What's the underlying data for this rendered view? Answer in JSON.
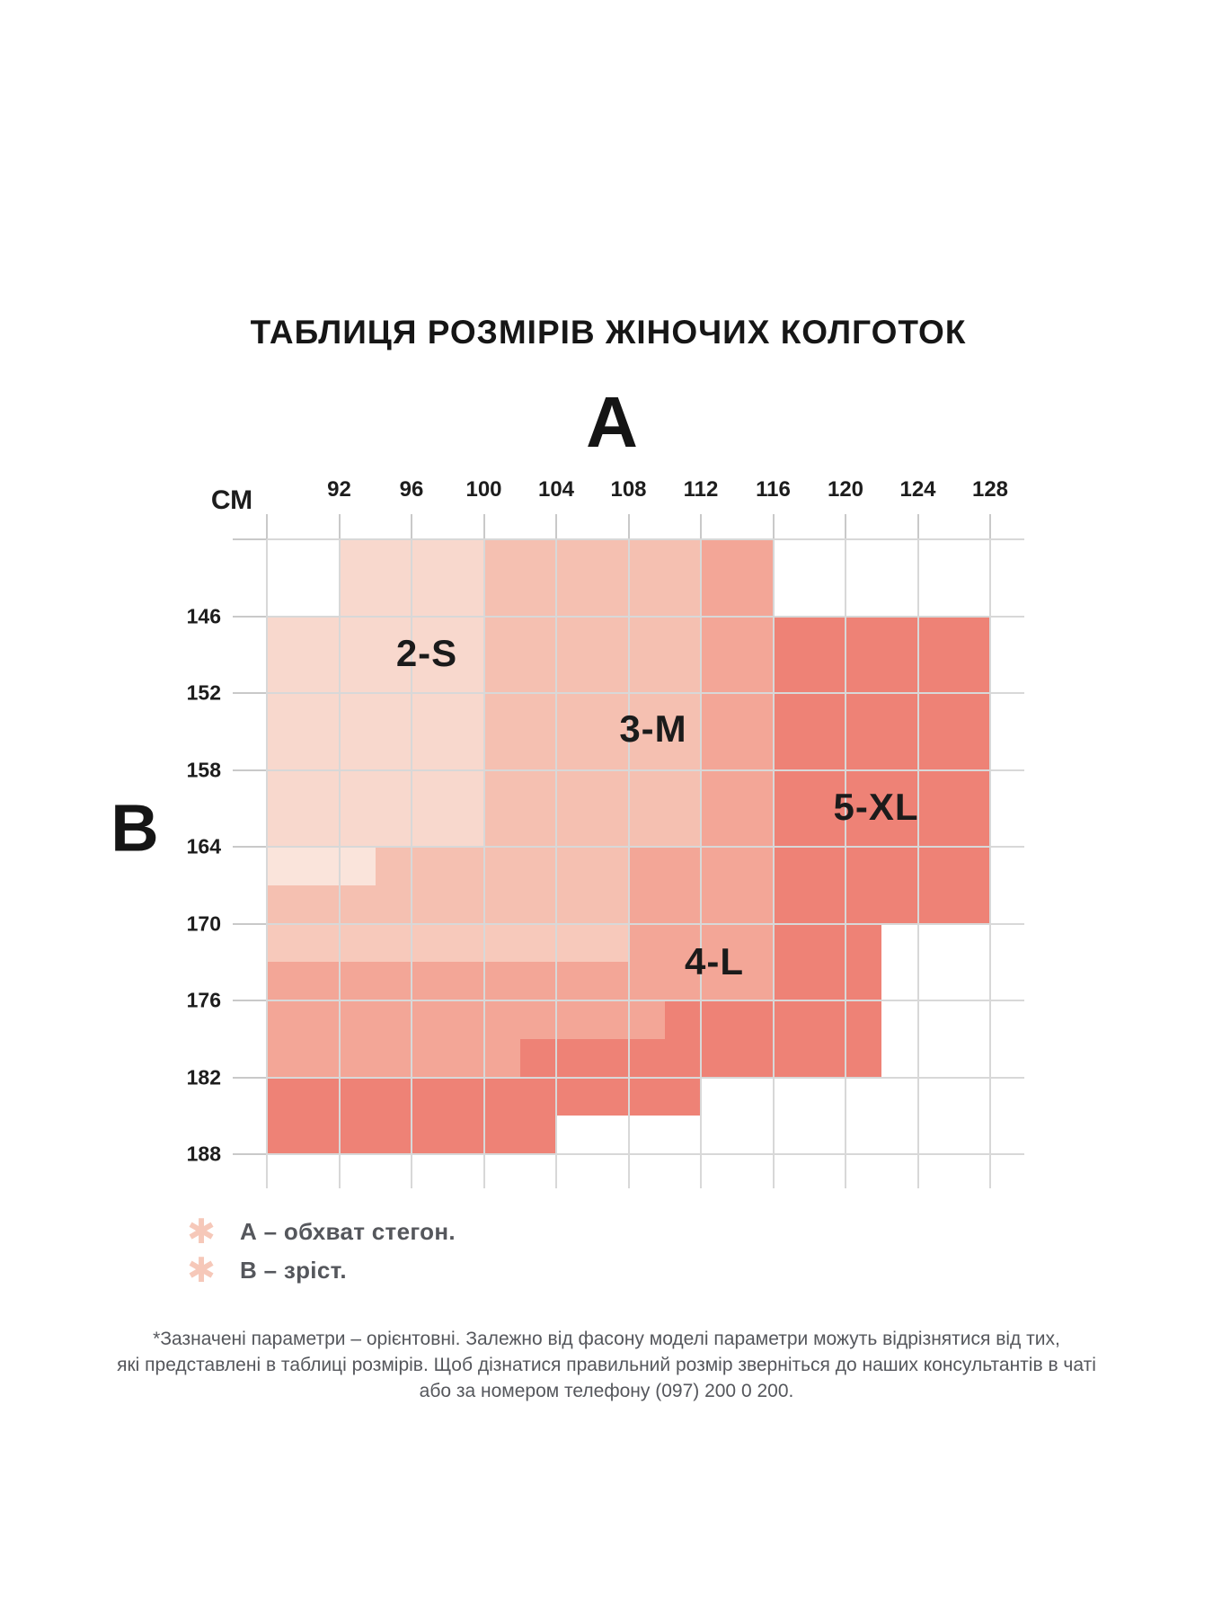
{
  "title": "ТАБЛИЦЯ РОЗМІРІВ ЖІНОЧИХ КОЛГОТОК",
  "axes": {
    "horizontal_label": "А",
    "vertical_label": "В",
    "unit_label": "СМ",
    "hip_ticks": [
      "92",
      "96",
      "100",
      "104",
      "108",
      "112",
      "116",
      "120",
      "124",
      "128"
    ],
    "height_ticks": [
      "146",
      "152",
      "158",
      "164",
      "170",
      "176",
      "182",
      "188"
    ]
  },
  "sizes": [
    {
      "label": "2-S"
    },
    {
      "label": "3-M"
    },
    {
      "label": "4-L"
    },
    {
      "label": "5-XL"
    }
  ],
  "legend": [
    {
      "icon": "asterisk-icon",
      "text": "А – обхват стегон."
    },
    {
      "icon": "asterisk-icon",
      "text": "В – зріст."
    }
  ],
  "footnote_lines": [
    "*Зазначені параметри – орієнтовні. Залежно від фасону моделі параметри можуть відрізнятися від тих,",
    "які представлені в таблиці розмірів. Щоб дізнатися правильний розмір зверніться до наших консультантів в чаті",
    "або за номером телефону (097) 200 0 200."
  ],
  "colors": {
    "size_2s": "#f8d8cd",
    "size_2s_pale": "#fae4db",
    "size_3m": "#f5c0b1",
    "size_3m_light": "#f7c9bb",
    "size_4l": "#f3a697",
    "size_5xl": "#ee8276",
    "gridline": "#d8d8d8",
    "tick": "#c9c9c9",
    "text_dark": "#1b1b1b",
    "text_gray": "#55575c",
    "asterisk": "#f6c8b9",
    "background": "#ffffff"
  },
  "chart_data": {
    "type": "heatmap",
    "title": "ТАБЛИЦЯ РОЗМІРІВ ЖІНОЧИХ КОЛГОТОК",
    "x_axis": {
      "label": "А (обхват стегон, см)",
      "ticks": [
        92,
        96,
        100,
        104,
        108,
        112,
        116,
        120,
        124,
        128
      ]
    },
    "y_axis": {
      "label": "В (зріст, см)",
      "ticks": [
        146,
        152,
        158,
        164,
        170,
        176,
        182,
        188
      ]
    },
    "grid": "on",
    "regions": [
      {
        "size": "2-S",
        "hips_cm": "≈88–100",
        "height_cm": "≈143–167"
      },
      {
        "size": "3-M",
        "hips_cm": "≈96–112",
        "height_cm": "≈140–173"
      },
      {
        "size": "4-L",
        "hips_cm": "≈88–116",
        "height_cm": "≈164–185"
      },
      {
        "size": "5-XL",
        "hips_cm": "≈112–128",
        "height_cm": "≈146–188"
      }
    ],
    "size_labels": [
      {
        "text": "2-S",
        "at_hips": 97,
        "at_height": 149
      },
      {
        "text": "3-M",
        "at_hips": 109,
        "at_height": 155
      },
      {
        "text": "4-L",
        "at_hips": 113,
        "at_height": 173
      },
      {
        "text": "5-XL",
        "at_hips": 122,
        "at_height": 161
      }
    ],
    "cell_map_note": "half-cell grid: hips_cm = 88 + 2*u (u = 0..21 column half-units, 21 = open right edge), height_cm = 140 + 3*r (r = 0..17 half-row units, 17 = open bottom edge); 'w' = white/empty",
    "cell_rows": [
      {
        "r": 0,
        "segments": [
          [
            0,
            2,
            "w"
          ],
          [
            2,
            6,
            "size_2s"
          ],
          [
            6,
            12,
            "size_3m"
          ],
          [
            12,
            14,
            "size_4l"
          ],
          [
            14,
            21,
            "w"
          ]
        ]
      },
      {
        "r": 1,
        "segments": [
          [
            0,
            2,
            "w"
          ],
          [
            2,
            6,
            "size_2s"
          ],
          [
            6,
            12,
            "size_3m"
          ],
          [
            12,
            14,
            "size_4l"
          ],
          [
            14,
            21,
            "w"
          ]
        ]
      },
      {
        "r": 2,
        "segments": [
          [
            0,
            6,
            "size_2s"
          ],
          [
            6,
            12,
            "size_3m"
          ],
          [
            12,
            14,
            "size_4l"
          ],
          [
            14,
            20,
            "size_5xl"
          ],
          [
            20,
            21,
            "w"
          ]
        ]
      },
      {
        "r": 3,
        "segments": [
          [
            0,
            6,
            "size_2s"
          ],
          [
            6,
            12,
            "size_3m"
          ],
          [
            12,
            14,
            "size_4l"
          ],
          [
            14,
            20,
            "size_5xl"
          ],
          [
            20,
            21,
            "w"
          ]
        ]
      },
      {
        "r": 4,
        "segments": [
          [
            0,
            6,
            "size_2s"
          ],
          [
            6,
            12,
            "size_3m"
          ],
          [
            12,
            14,
            "size_4l"
          ],
          [
            14,
            20,
            "size_5xl"
          ],
          [
            20,
            21,
            "w"
          ]
        ]
      },
      {
        "r": 5,
        "segments": [
          [
            0,
            6,
            "size_2s"
          ],
          [
            6,
            12,
            "size_3m"
          ],
          [
            12,
            14,
            "size_4l"
          ],
          [
            14,
            20,
            "size_5xl"
          ],
          [
            20,
            21,
            "w"
          ]
        ]
      },
      {
        "r": 6,
        "segments": [
          [
            0,
            6,
            "size_2s"
          ],
          [
            6,
            12,
            "size_3m"
          ],
          [
            12,
            14,
            "size_4l"
          ],
          [
            14,
            20,
            "size_5xl"
          ],
          [
            20,
            21,
            "w"
          ]
        ]
      },
      {
        "r": 7,
        "segments": [
          [
            0,
            6,
            "size_2s"
          ],
          [
            6,
            12,
            "size_3m"
          ],
          [
            12,
            14,
            "size_4l"
          ],
          [
            14,
            20,
            "size_5xl"
          ],
          [
            20,
            21,
            "w"
          ]
        ]
      },
      {
        "r": 8,
        "segments": [
          [
            0,
            3,
            "size_2s_pale"
          ],
          [
            3,
            10,
            "size_3m"
          ],
          [
            10,
            14,
            "size_4l"
          ],
          [
            14,
            20,
            "size_5xl"
          ],
          [
            20,
            21,
            "w"
          ]
        ]
      },
      {
        "r": 9,
        "segments": [
          [
            0,
            10,
            "size_3m"
          ],
          [
            10,
            14,
            "size_4l"
          ],
          [
            14,
            20,
            "size_5xl"
          ],
          [
            20,
            21,
            "w"
          ]
        ]
      },
      {
        "r": 10,
        "segments": [
          [
            0,
            10,
            "size_3m_light"
          ],
          [
            10,
            14,
            "size_4l"
          ],
          [
            14,
            17,
            "size_5xl"
          ],
          [
            17,
            21,
            "w"
          ]
        ]
      },
      {
        "r": 11,
        "segments": [
          [
            0,
            14,
            "size_4l"
          ],
          [
            14,
            17,
            "size_5xl"
          ],
          [
            17,
            21,
            "w"
          ]
        ]
      },
      {
        "r": 12,
        "segments": [
          [
            0,
            11,
            "size_4l"
          ],
          [
            11,
            17,
            "size_5xl"
          ],
          [
            17,
            21,
            "w"
          ]
        ]
      },
      {
        "r": 13,
        "segments": [
          [
            0,
            7,
            "size_4l"
          ],
          [
            7,
            17,
            "size_5xl"
          ],
          [
            17,
            21,
            "w"
          ]
        ]
      },
      {
        "r": 14,
        "segments": [
          [
            0,
            12,
            "size_5xl"
          ],
          [
            12,
            21,
            "w"
          ]
        ]
      },
      {
        "r": 15,
        "segments": [
          [
            0,
            8,
            "size_5xl"
          ],
          [
            8,
            21,
            "w"
          ]
        ]
      },
      {
        "r": 16,
        "segments": [
          [
            0,
            21,
            "w"
          ]
        ]
      }
    ]
  }
}
